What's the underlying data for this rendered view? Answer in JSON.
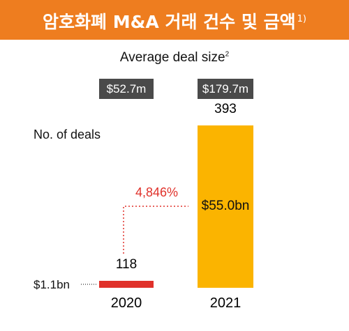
{
  "header": {
    "title": "암호화폐 M&A 거래 건수 및 금액",
    "footnote": "1)"
  },
  "chart_data": {
    "type": "bar",
    "categories": [
      "2020",
      "2021"
    ],
    "series": [
      {
        "values": [
          1.1,
          55.0
        ],
        "value_labels": [
          "$1.1bn",
          "$55.0bn"
        ]
      }
    ],
    "deal_counts": [
      118,
      393
    ],
    "yaxis_label": "No. of deals",
    "average_deal_size": {
      "label": "Average deal size",
      "footnote": "2",
      "values": [
        "$52.7m",
        "$179.7m"
      ]
    },
    "growth_label": "4,846%",
    "ylim": [
      0,
      55.0
    ],
    "colors": {
      "2020": "#e0312a",
      "2021": "#fbb400"
    }
  },
  "colors": {
    "header_bg": "#ee7d1f",
    "avg_box_bg": "#4a4a4a",
    "growth_text": "#e0312a"
  }
}
